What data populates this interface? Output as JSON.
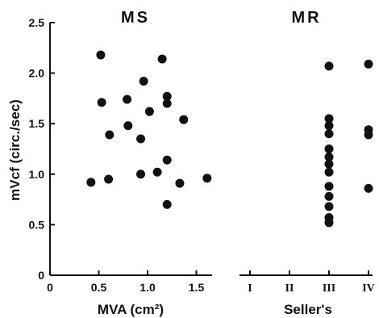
{
  "chart_data": [
    {
      "type": "scatter",
      "title": "MS",
      "xlabel": "MVA (cm²)",
      "ylabel": "mVcf (circ./sec)",
      "xlim": [
        0,
        1.6
      ],
      "ylim": [
        0,
        2.5
      ],
      "xticks": [
        "0",
        "0.5",
        "1.0",
        "1.5"
      ],
      "xtick_values": [
        0,
        0.5,
        1.0,
        1.5
      ],
      "yticks": [
        "0",
        "0.5",
        "1.0",
        "1.5",
        "2.0",
        "2.5"
      ],
      "ytick_values": [
        0,
        0.5,
        1.0,
        1.5,
        2.0,
        2.5
      ],
      "grid": false,
      "points": [
        {
          "x": 0.42,
          "y": 0.92
        },
        {
          "x": 0.52,
          "y": 2.18
        },
        {
          "x": 0.53,
          "y": 1.71
        },
        {
          "x": 0.6,
          "y": 0.95
        },
        {
          "x": 0.61,
          "y": 1.39
        },
        {
          "x": 0.79,
          "y": 1.74
        },
        {
          "x": 0.8,
          "y": 1.48
        },
        {
          "x": 0.93,
          "y": 1.35
        },
        {
          "x": 0.93,
          "y": 1.0
        },
        {
          "x": 0.96,
          "y": 1.92
        },
        {
          "x": 1.02,
          "y": 1.62
        },
        {
          "x": 1.1,
          "y": 1.02
        },
        {
          "x": 1.15,
          "y": 2.14
        },
        {
          "x": 1.2,
          "y": 1.77
        },
        {
          "x": 1.2,
          "y": 1.7
        },
        {
          "x": 1.2,
          "y": 1.14
        },
        {
          "x": 1.2,
          "y": 0.7
        },
        {
          "x": 1.33,
          "y": 0.91
        },
        {
          "x": 1.37,
          "y": 1.54
        },
        {
          "x": 1.61,
          "y": 0.96
        }
      ]
    },
    {
      "type": "scatter",
      "title": "MR",
      "xlabel": "Seller's",
      "categories": [
        "I",
        "II",
        "III",
        "IV"
      ],
      "grid": false,
      "points": [
        {
          "x": "III",
          "y": 2.07
        },
        {
          "x": "III",
          "y": 1.55
        },
        {
          "x": "III",
          "y": 1.48
        },
        {
          "x": "III",
          "y": 1.4
        },
        {
          "x": "III",
          "y": 1.25
        },
        {
          "x": "III",
          "y": 1.17
        },
        {
          "x": "III",
          "y": 1.1
        },
        {
          "x": "III",
          "y": 1.02
        },
        {
          "x": "III",
          "y": 0.88
        },
        {
          "x": "III",
          "y": 0.78
        },
        {
          "x": "III",
          "y": 0.68
        },
        {
          "x": "III",
          "y": 0.57
        },
        {
          "x": "III",
          "y": 0.52
        },
        {
          "x": "IV",
          "y": 2.09
        },
        {
          "x": "IV",
          "y": 1.44
        },
        {
          "x": "IV",
          "y": 1.39
        },
        {
          "x": "IV",
          "y": 0.86
        }
      ]
    }
  ]
}
